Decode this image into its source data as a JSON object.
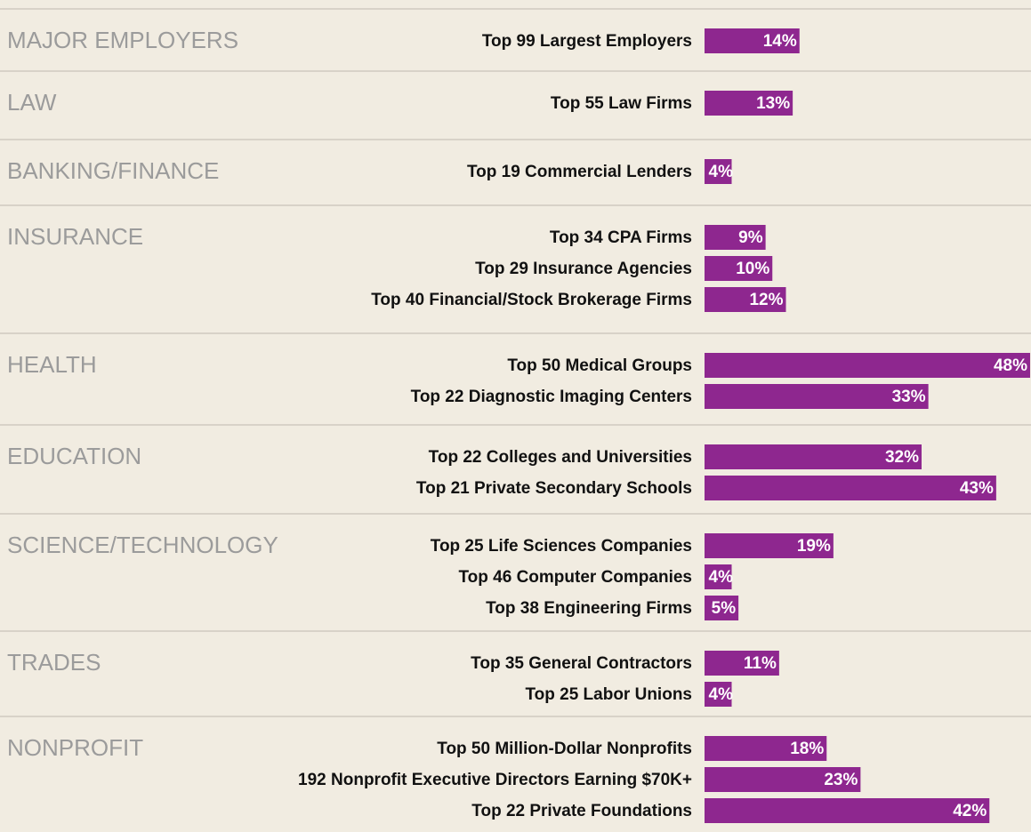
{
  "chart_data": {
    "type": "bar",
    "color": "#8e278f",
    "xlim": [
      0,
      48
    ],
    "groups": [
      {
        "name": "MAJOR EMPLOYERS",
        "categories": [
          "Top 99 Largest Employers"
        ],
        "values": [
          14
        ],
        "value_labels": [
          "14%"
        ]
      },
      {
        "name": "LAW",
        "categories": [
          "Top 55 Law Firms"
        ],
        "values": [
          13
        ],
        "value_labels": [
          "13%"
        ]
      },
      {
        "name": "BANKING/FINANCE",
        "categories": [
          "Top 19 Commercial Lenders"
        ],
        "values": [
          4
        ],
        "value_labels": [
          "4%"
        ]
      },
      {
        "name": "INSURANCE",
        "categories": [
          "Top 34 CPA Firms",
          "Top 29 Insurance Agencies",
          "Top 40 Financial/Stock Brokerage Firms"
        ],
        "values": [
          9,
          10,
          12
        ],
        "value_labels": [
          "9%",
          "10%",
          "12%"
        ]
      },
      {
        "name": "HEALTH",
        "categories": [
          "Top 50 Medical Groups",
          "Top 22 Diagnostic Imaging Centers"
        ],
        "values": [
          48,
          33
        ],
        "value_labels": [
          "48%",
          "33%"
        ]
      },
      {
        "name": "EDUCATION",
        "categories": [
          "Top 22 Colleges and Universities",
          "Top 21 Private Secondary Schools"
        ],
        "values": [
          32,
          43
        ],
        "value_labels": [
          "32%",
          "43%"
        ]
      },
      {
        "name": "SCIENCE/TECHNOLOGY",
        "categories": [
          "Top 25 Life Sciences Companies",
          "Top 46 Computer Companies",
          "Top 38 Engineering Firms"
        ],
        "values": [
          19,
          4,
          5
        ],
        "value_labels": [
          "19%",
          "4%",
          "5%"
        ]
      },
      {
        "name": "TRADES",
        "categories": [
          "Top 35 General Contractors",
          "Top 25 Labor Unions"
        ],
        "values": [
          11,
          4
        ],
        "value_labels": [
          "11%",
          "4%"
        ]
      },
      {
        "name": "NONPROFIT",
        "categories": [
          "Top 50 Million-Dollar Nonprofits",
          "192 Nonprofit Executive Directors Earning $70K+",
          "Top 22 Private Foundations"
        ],
        "values": [
          18,
          23,
          42
        ],
        "value_labels": [
          "18%",
          "23%",
          "42%"
        ]
      }
    ]
  }
}
